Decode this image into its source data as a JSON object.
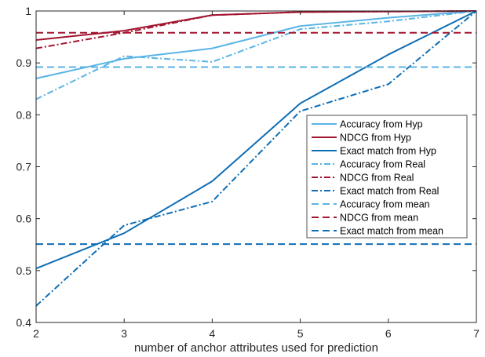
{
  "chart_data": {
    "type": "line",
    "title": "",
    "xlabel": "number of anchor attributes used for prediction",
    "ylabel": "",
    "xlim": [
      2,
      7
    ],
    "ylim": [
      0.4,
      1
    ],
    "x_ticks": [
      "2",
      "3",
      "4",
      "5",
      "6",
      "7"
    ],
    "y_ticks": [
      "0.4",
      "0.5",
      "0.6",
      "0.7",
      "0.8",
      "0.9",
      "1"
    ],
    "grid": false,
    "legend_position": "right",
    "x": [
      2,
      3,
      4,
      5,
      6,
      7
    ],
    "series": [
      {
        "name": "Accuracy from Hyp",
        "values": [
          0.87,
          0.908,
          0.928,
          0.971,
          0.987,
          1.0
        ],
        "color": "#5ab4e5",
        "dash": "solid",
        "width": 2
      },
      {
        "name": "NDCG from Hyp",
        "values": [
          0.944,
          0.962,
          0.992,
          0.998,
          0.999,
          1.0
        ],
        "color": "#a2142f",
        "dash": "solid",
        "width": 2
      },
      {
        "name": "Exact match from Hyp",
        "values": [
          0.504,
          0.572,
          0.672,
          0.822,
          0.916,
          1.0
        ],
        "color": "#0e6eb5",
        "dash": "solid",
        "width": 2
      },
      {
        "name": "Accuracy from Real",
        "values": [
          0.83,
          0.913,
          0.902,
          0.965,
          0.98,
          1.0
        ],
        "color": "#5ab4e5",
        "dash": "dashdot",
        "width": 2
      },
      {
        "name": "NDCG from Real",
        "values": [
          0.928,
          0.958,
          0.992,
          0.998,
          0.999,
          1.0
        ],
        "color": "#a2142f",
        "dash": "dashdot",
        "width": 2
      },
      {
        "name": "Exact match from Real",
        "values": [
          0.432,
          0.587,
          0.633,
          0.807,
          0.859,
          1.0
        ],
        "color": "#0e6eb5",
        "dash": "dashdot",
        "width": 2
      },
      {
        "name": "Accuracy from mean",
        "values": [
          0.892,
          0.892,
          0.892,
          0.892,
          0.892,
          0.892
        ],
        "color": "#5ab4e5",
        "dash": "dashed",
        "width": 2
      },
      {
        "name": "NDCG from mean",
        "values": [
          0.958,
          0.958,
          0.958,
          0.958,
          0.958,
          0.958
        ],
        "color": "#a2142f",
        "dash": "dashed",
        "width": 2
      },
      {
        "name": "Exact match from mean",
        "values": [
          0.551,
          0.551,
          0.551,
          0.551,
          0.551,
          0.551
        ],
        "color": "#0e6eb5",
        "dash": "dashed",
        "width": 2
      }
    ]
  }
}
